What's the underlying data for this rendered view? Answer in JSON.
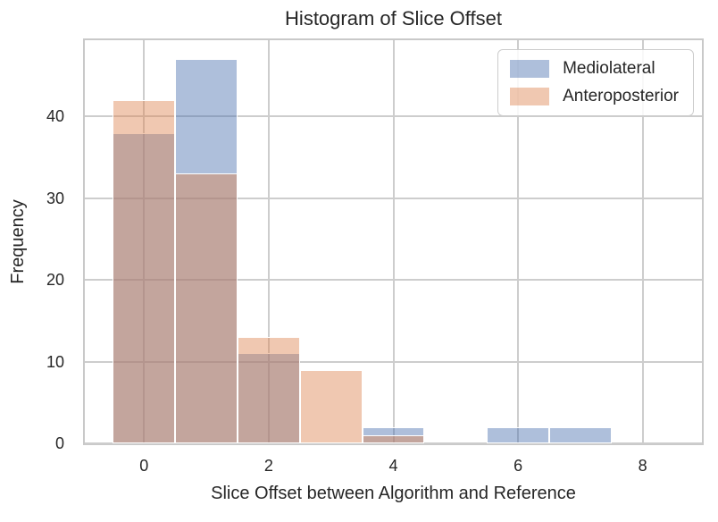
{
  "chart_data": {
    "type": "histogram",
    "title": "Histogram of Slice Offset",
    "xlabel": "Slice Offset between Algorithm and Reference",
    "ylabel": "Frequency",
    "bins": {
      "centers": [
        0,
        1,
        2,
        3,
        4,
        5,
        6,
        7
      ],
      "width": 1
    },
    "series": [
      {
        "name": "Mediolateral",
        "values": [
          38,
          47,
          11,
          0,
          2,
          0,
          2,
          2
        ],
        "fill": "rgba(76,114,176,0.45)",
        "solid_hex": "#b4c6e0"
      },
      {
        "name": "Anteroposterior",
        "values": [
          42,
          33,
          13,
          9,
          1,
          0,
          0,
          0
        ],
        "fill": "rgba(221,132,82,0.45)",
        "solid_hex": "#f1cab5"
      }
    ],
    "xticks": [
      0,
      2,
      4,
      6,
      8
    ],
    "yticks": [
      0,
      10,
      20,
      30,
      40
    ],
    "xlim": [
      -0.95,
      8.95
    ],
    "ylim": [
      0,
      49.35
    ],
    "grid": true,
    "legend_position": "upper-right"
  },
  "style": {
    "text_color": "#262626",
    "grid_color": "#cdcdcd",
    "spine_color": "#c9c9c9",
    "bar_edge_color": "#ffffff",
    "background": "#ffffff",
    "overlap_hex": "#c7a9a6"
  }
}
